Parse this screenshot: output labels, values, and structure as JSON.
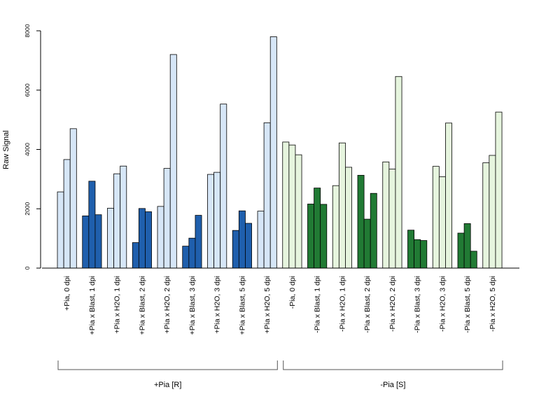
{
  "chart_data": {
    "type": "bar",
    "ylabel": "Raw Signal",
    "ylim": [
      0,
      8000
    ],
    "yticks": [
      0,
      2000,
      4000,
      6000,
      8000
    ],
    "grid": false,
    "categories": [
      "+Pia, 0 dpi",
      "+Pia x Blast, 1 dpi",
      "+Pia x H2O, 1 dpi",
      "+Pia x Blast, 2 dpi",
      "+Pia x H2O, 2 dpi",
      "+Pia x Blast, 3 dpi",
      "+Pia x H2O, 3 dpi",
      "+Pia x Blast, 5 dpi",
      "+Pia x H2O, 5 dpi",
      "-Pia, 0 dpi",
      "-Pia x Blast, 1 dpi",
      "-Pia x H2O, 1 dpi",
      "-Pia x Blast, 2 dpi",
      "-Pia x H2O, 2 dpi",
      "-Pia x Blast, 3 dpi",
      "-Pia x H2O, 3 dpi",
      "-Pia x Blast, 5 dpi",
      "-Pia x H2O, 5 dpi"
    ],
    "values": [
      [
        2570,
        3660,
        4700
      ],
      [
        1760,
        2930,
        1800
      ],
      [
        2020,
        3180,
        3440
      ],
      [
        860,
        2010,
        1900
      ],
      [
        2080,
        3360,
        7200
      ],
      [
        740,
        1010,
        1780
      ],
      [
        3160,
        3230,
        5530
      ],
      [
        1270,
        1930,
        1510
      ],
      [
        1920,
        4900,
        7800
      ],
      [
        4250,
        4150,
        3820
      ],
      [
        2160,
        2700,
        2150
      ],
      [
        2780,
        4220,
        3400
      ],
      [
        3130,
        1650,
        2520
      ],
      [
        3580,
        3340,
        6460
      ],
      [
        1280,
        960,
        930
      ],
      [
        3430,
        3080,
        4890
      ],
      [
        1180,
        1500,
        570
      ],
      [
        3550,
        3800,
        5260
      ]
    ],
    "bar_colors": [
      "#d6e6f7",
      "#1f5fad",
      "#d6e6f7",
      "#1f5fad",
      "#d6e6f7",
      "#1f5fad",
      "#d6e6f7",
      "#1f5fad",
      "#d6e6f7",
      "#e6f5de",
      "#217a34",
      "#e6f5de",
      "#217a34",
      "#e6f5de",
      "#217a34",
      "#e6f5de",
      "#217a34",
      "#e6f5de"
    ],
    "groups": [
      {
        "label": "+Pia [R]",
        "start": 0,
        "end": 8
      },
      {
        "label": "-Pia [S]",
        "start": 9,
        "end": 17
      }
    ]
  }
}
